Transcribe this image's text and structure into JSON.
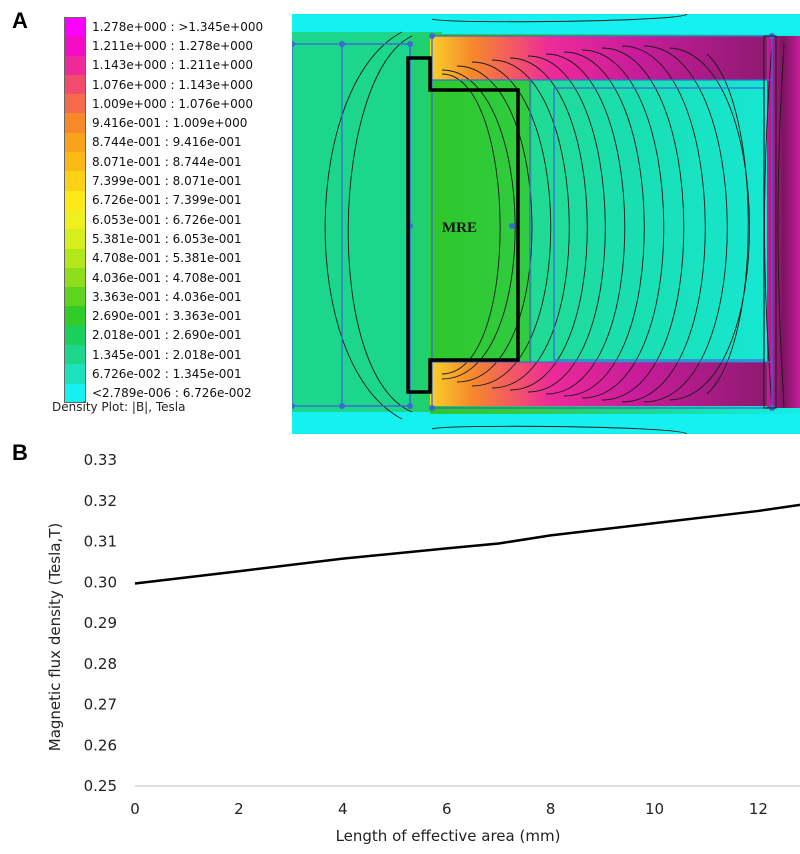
{
  "panels": {
    "a": "A",
    "b": "B"
  },
  "density_plot": {
    "legend_title": "Density Plot: |B|, Tesla",
    "region_label": "MRE",
    "legend": [
      {
        "range": "1.278e+000 : >1.345e+000",
        "color": "#ff00ff"
      },
      {
        "range": "1.211e+000 : 1.278e+000",
        "color": "#f20cc6"
      },
      {
        "range": "1.143e+000 : 1.211e+000",
        "color": "#ee2a9a"
      },
      {
        "range": "1.076e+000 : 1.143e+000",
        "color": "#f24c6d"
      },
      {
        "range": "1.009e+000 : 1.076e+000",
        "color": "#f46a4a"
      },
      {
        "range": "9.416e-001 : 1.009e+000",
        "color": "#f68a2a"
      },
      {
        "range": "8.744e-001 : 9.416e-001",
        "color": "#f8a21e"
      },
      {
        "range": "8.071e-001 : 8.744e-001",
        "color": "#fbb816"
      },
      {
        "range": "7.399e-001 : 8.071e-001",
        "color": "#fdd116"
      },
      {
        "range": "6.726e-001 : 7.399e-001",
        "color": "#ffe81a"
      },
      {
        "range": "6.053e-001 : 6.726e-001",
        "color": "#f0f020"
      },
      {
        "range": "5.381e-001 : 6.053e-001",
        "color": "#d6ee1e"
      },
      {
        "range": "4.708e-001 : 5.381e-001",
        "color": "#b4e61c"
      },
      {
        "range": "4.036e-001 : 4.708e-001",
        "color": "#8ede1c"
      },
      {
        "range": "3.363e-001 : 4.036e-001",
        "color": "#5ed41e"
      },
      {
        "range": "2.690e-001 : 3.363e-001",
        "color": "#30cc2a"
      },
      {
        "range": "2.018e-001 : 2.690e-001",
        "color": "#1acf5a"
      },
      {
        "range": "1.345e-001 : 2.018e-001",
        "color": "#1cd68c"
      },
      {
        "range": "6.726e-002 : 1.345e-001",
        "color": "#1ce2bc"
      },
      {
        "range": "<2.789e-006 : 6.726e-002",
        "color": "#15f0f0"
      }
    ]
  },
  "chart_data": {
    "type": "line",
    "xlabel": "Length of effective area (mm)",
    "ylabel": "Magnetic flux density (Tesla,T)",
    "xlim": [
      0,
      12.8
    ],
    "ylim": [
      0.25,
      0.33
    ],
    "x_ticks": [
      0,
      2,
      4,
      6,
      8,
      10,
      12
    ],
    "y_ticks": [
      0.25,
      0.26,
      0.27,
      0.28,
      0.29,
      0.3,
      0.31,
      0.32,
      0.33
    ],
    "y_tick_labels": [
      "0.25",
      "0.26",
      "0.27",
      "0.28",
      "0.29",
      "0.30",
      "0.31",
      "0.32",
      "0.33"
    ],
    "grid": false,
    "series": [
      {
        "x": [
          0,
          2,
          4,
          6,
          7,
          8,
          10,
          12,
          12.8
        ],
        "y": [
          0.2997,
          0.3027,
          0.3058,
          0.3083,
          0.3095,
          0.3115,
          0.3145,
          0.3175,
          0.319
        ],
        "color": "#000000"
      }
    ]
  }
}
